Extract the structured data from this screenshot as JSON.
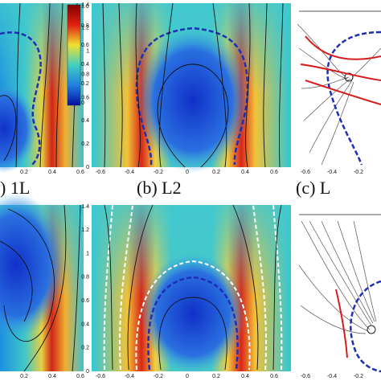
{
  "top": [
    {
      "xticks": [
        "0.2",
        "0.4",
        "0.6"
      ]
    },
    {
      "xticks": [
        "-0.6",
        "-0.4",
        "-0.2",
        "0",
        "0.2",
        "0.4",
        "0.6"
      ],
      "yticks": [
        "1.4",
        "1.2",
        "1",
        "0.8",
        "0.6",
        "0.4",
        "0.2",
        "0"
      ]
    },
    {
      "xticks": [
        "-0.6",
        "-0.4",
        "-0.2"
      ]
    }
  ],
  "bottom": [
    {
      "xticks": [
        "0.2",
        "0.4",
        "0.6"
      ]
    },
    {
      "xticks": [
        "-0.6",
        "-0.4",
        "-0.2",
        "0",
        "0.2",
        "0.4",
        "0.6"
      ],
      "yticks": [
        "1.4",
        "1.2",
        "1",
        "0.8",
        "0.6",
        "0.4",
        "0.2",
        "0"
      ]
    },
    {
      "xticks": [
        "-0.6",
        "-0.4",
        "-0.2"
      ]
    }
  ],
  "labels": [
    ") 1L",
    "(b) L2",
    "(c) L"
  ],
  "colorbar": {
    "ticks": [
      "1.0",
      "0.8",
      "0.6",
      "0.4",
      "0.2",
      "0"
    ]
  }
}
